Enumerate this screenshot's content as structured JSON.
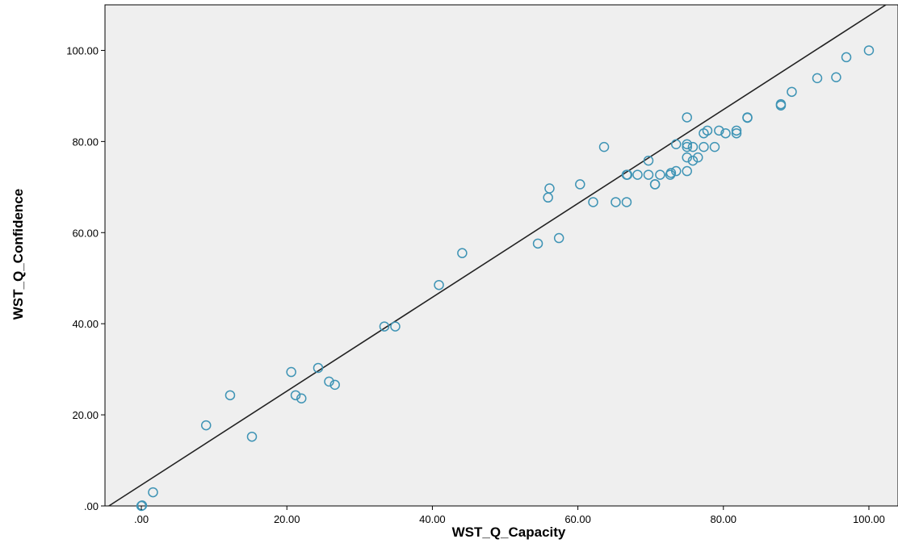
{
  "chart_data": {
    "type": "scatter",
    "title": "",
    "xlabel": "WST_Q_Capacity",
    "ylabel": "WST_Q_Confidence",
    "xlim": [
      -5,
      104
    ],
    "ylim": [
      0,
      110
    ],
    "x_ticks": [
      0,
      20,
      40,
      60,
      80,
      100
    ],
    "x_tick_labels": [
      ".00",
      "20.00",
      "40.00",
      "60.00",
      "80.00",
      "100.00"
    ],
    "y_ticks": [
      0,
      20,
      40,
      60,
      80,
      100
    ],
    "y_tick_labels": [
      ".00",
      "20.00",
      "40.00",
      "60.00",
      "80.00",
      "100.00"
    ],
    "grid": false,
    "background": "#efefef",
    "marker_color": "#3f94b5",
    "line_color": "#222222",
    "fit_line": {
      "slope": 1.03,
      "intercept": 4.6
    },
    "points": [
      [
        0,
        0
      ],
      [
        0.1,
        0.1
      ],
      [
        1.6,
        3
      ],
      [
        8.9,
        17.7
      ],
      [
        12.2,
        24.3
      ],
      [
        15.2,
        15.2
      ],
      [
        20.6,
        29.4
      ],
      [
        21.2,
        24.3
      ],
      [
        22.0,
        23.6
      ],
      [
        24.3,
        30.3
      ],
      [
        25.8,
        27.3
      ],
      [
        26.6,
        26.6
      ],
      [
        33.4,
        39.4
      ],
      [
        34.9,
        39.4
      ],
      [
        40.9,
        48.5
      ],
      [
        44.1,
        55.5
      ],
      [
        54.5,
        57.6
      ],
      [
        55.9,
        67.7
      ],
      [
        56.1,
        69.7
      ],
      [
        57.4,
        58.8
      ],
      [
        60.3,
        70.6
      ],
      [
        62.1,
        66.7
      ],
      [
        63.6,
        78.8
      ],
      [
        65.2,
        66.7
      ],
      [
        66.7,
        72.7
      ],
      [
        66.7,
        66.7
      ],
      [
        66.8,
        72.7
      ],
      [
        68.2,
        72.7
      ],
      [
        69.7,
        72.7
      ],
      [
        69.7,
        75.8
      ],
      [
        70.6,
        70.6
      ],
      [
        70.6,
        70.6
      ],
      [
        71.3,
        72.7
      ],
      [
        72.7,
        72.7
      ],
      [
        72.8,
        73.1
      ],
      [
        73.5,
        79.4
      ],
      [
        73.5,
        73.5
      ],
      [
        75.0,
        85.3
      ],
      [
        75.0,
        79.4
      ],
      [
        75.0,
        78.8
      ],
      [
        75.0,
        76.5
      ],
      [
        75.0,
        73.5
      ],
      [
        75.8,
        75.8
      ],
      [
        75.8,
        78.8
      ],
      [
        76.5,
        76.5
      ],
      [
        77.3,
        78.8
      ],
      [
        77.3,
        81.8
      ],
      [
        77.8,
        82.4
      ],
      [
        78.8,
        78.8
      ],
      [
        79.4,
        82.4
      ],
      [
        80.3,
        81.8
      ],
      [
        81.8,
        81.8
      ],
      [
        81.8,
        82.4
      ],
      [
        83.3,
        85.2
      ],
      [
        83.3,
        85.3
      ],
      [
        87.9,
        87.9
      ],
      [
        87.9,
        88.2
      ],
      [
        89.4,
        90.9
      ],
      [
        92.9,
        93.9
      ],
      [
        95.5,
        94.1
      ],
      [
        96.9,
        98.5
      ],
      [
        100.0,
        100.0
      ]
    ]
  }
}
